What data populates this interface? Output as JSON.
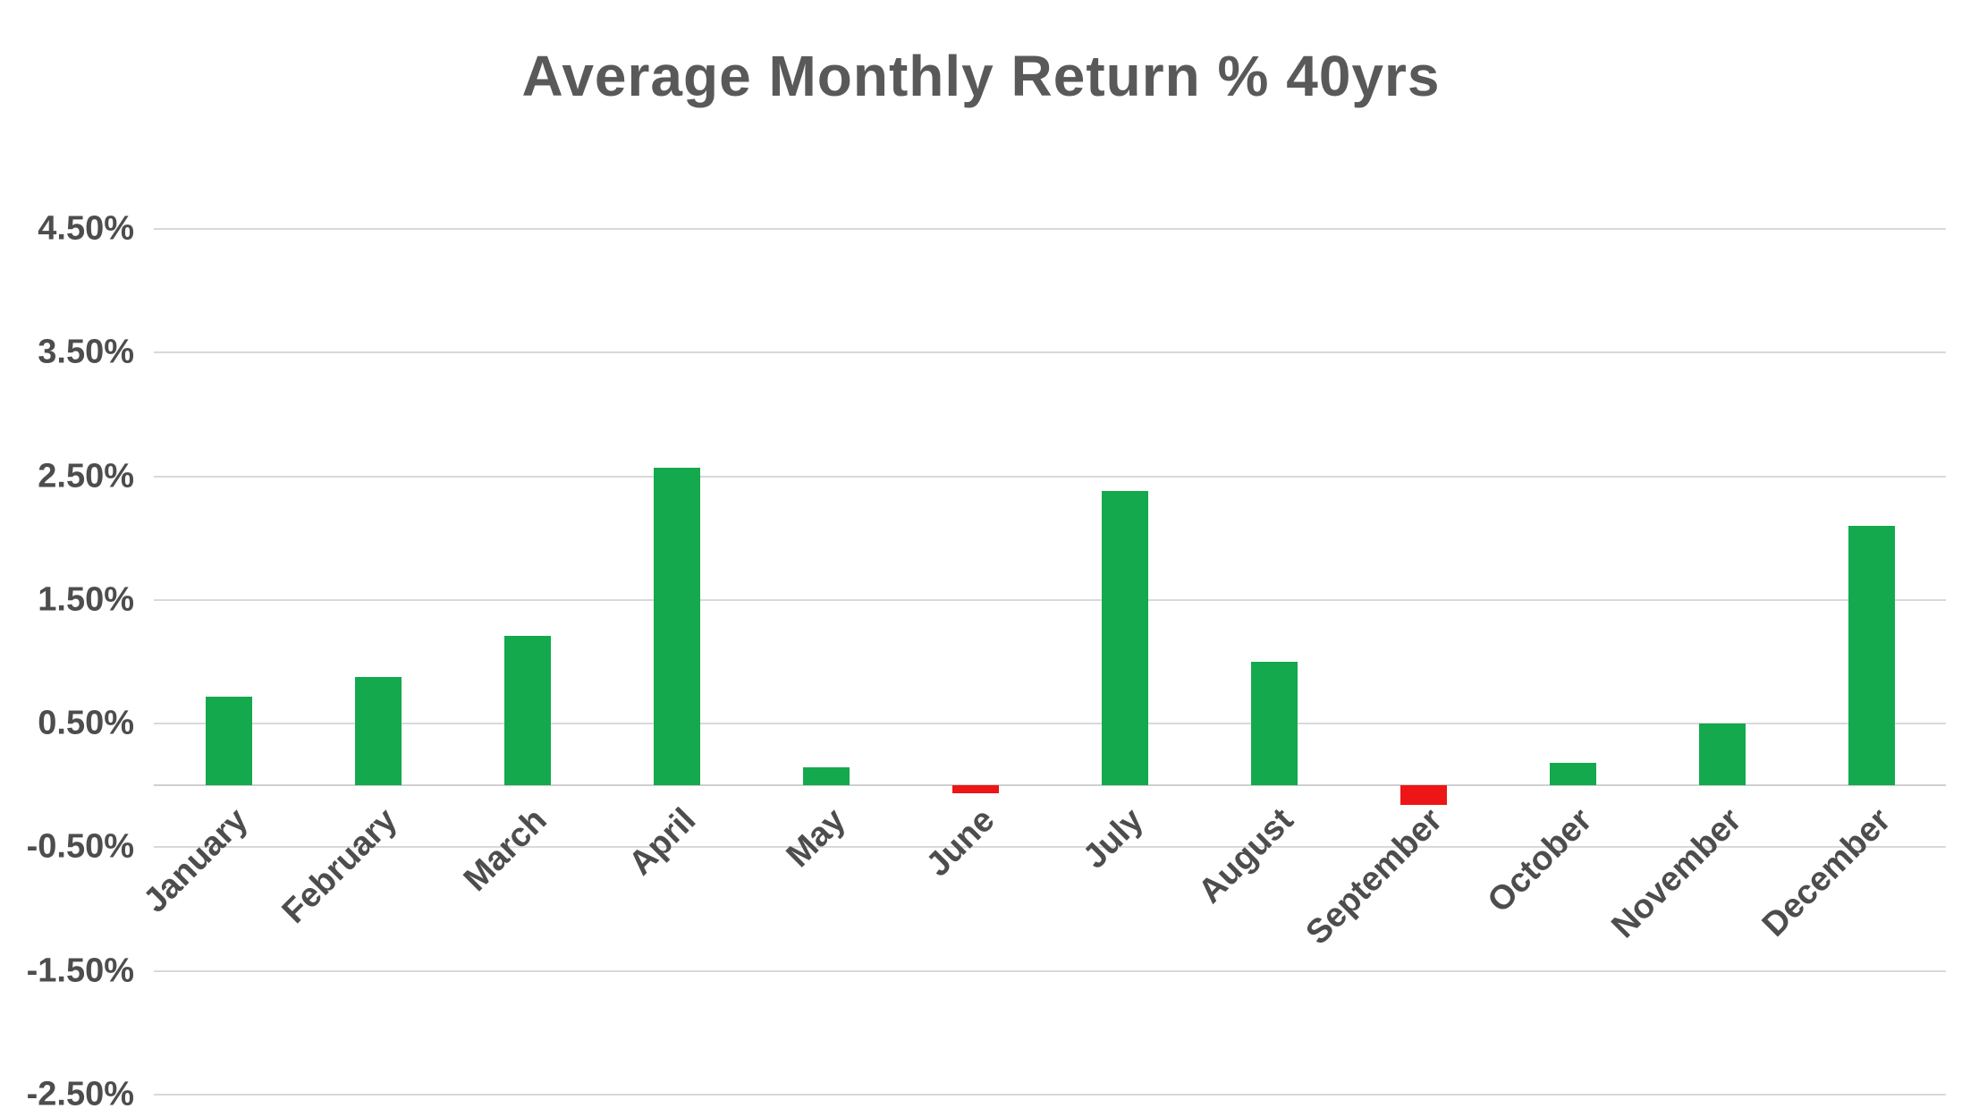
{
  "title": "Average Monthly Return % 40yrs",
  "chart_data": {
    "type": "bar",
    "title": "Average Monthly Return % 40yrs",
    "categories": [
      "January",
      "February",
      "March",
      "April",
      "May",
      "June",
      "July",
      "August",
      "September",
      "October",
      "November",
      "December"
    ],
    "values": [
      0.72,
      0.88,
      1.21,
      2.57,
      0.15,
      -0.06,
      2.38,
      1.0,
      -0.16,
      0.18,
      0.5,
      2.1
    ],
    "xlabel": "",
    "ylabel": "",
    "ylim": [
      -2.5,
      4.5
    ],
    "grid": true,
    "legend": "none",
    "y_ticks": [
      {
        "label": "4.50%",
        "value": 4.5
      },
      {
        "label": "3.50%",
        "value": 3.5
      },
      {
        "label": "2.50%",
        "value": 2.5
      },
      {
        "label": "1.50%",
        "value": 1.5
      },
      {
        "label": "0.50%",
        "value": 0.5
      },
      {
        "label": "-0.50%",
        "value": -0.5
      },
      {
        "label": "-1.50%",
        "value": -1.5
      },
      {
        "label": "-2.50%",
        "value": -2.5
      }
    ],
    "positive_color": "#14a94d",
    "negative_color": "#ed1515",
    "gridline_color": "#d9d9d9",
    "text_color": "#4d4d4d",
    "title_color": "#595959"
  }
}
